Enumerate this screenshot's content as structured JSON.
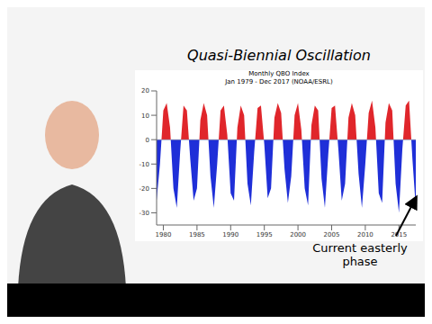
{
  "header": "Quasi-Biennial Oscillation",
  "chart_data": {
    "type": "area",
    "title": "Monthly QBO Index",
    "subtitle": "Jan 1979 - Dec 2017 (NOAA/ESRL)",
    "annotation": "Current easterly phase",
    "colors": [
      "#e0262b",
      "#1f2fd8"
    ],
    "x": [
      1979.0,
      1979.5,
      1980.0,
      1980.5,
      1981.0,
      1981.5,
      1982.0,
      1982.5,
      1983.0,
      1983.5,
      1984.0,
      1984.5,
      1985.0,
      1985.5,
      1986.0,
      1986.5,
      1987.0,
      1987.5,
      1988.0,
      1988.5,
      1989.0,
      1989.5,
      1990.0,
      1990.5,
      1991.0,
      1991.5,
      1992.0,
      1992.5,
      1993.0,
      1993.5,
      1994.0,
      1994.5,
      1995.0,
      1995.5,
      1996.0,
      1996.5,
      1997.0,
      1997.5,
      1998.0,
      1998.5,
      1999.0,
      1999.5,
      2000.0,
      2000.5,
      2001.0,
      2001.5,
      2002.0,
      2002.5,
      2003.0,
      2003.5,
      2004.0,
      2004.5,
      2005.0,
      2005.5,
      2006.0,
      2006.5,
      2007.0,
      2007.5,
      2008.0,
      2008.5,
      2009.0,
      2009.5,
      2010.0,
      2010.5,
      2011.0,
      2011.5,
      2012.0,
      2012.5,
      2013.0,
      2013.5,
      2014.0,
      2014.5,
      2015.0,
      2015.5,
      2016.0,
      2016.5,
      2017.0,
      2017.5
    ],
    "values": [
      -25,
      -10,
      12,
      15,
      5,
      -20,
      -28,
      -5,
      14,
      12,
      -8,
      -25,
      -20,
      8,
      15,
      10,
      -15,
      -28,
      -10,
      12,
      14,
      2,
      -22,
      -25,
      5,
      14,
      10,
      -18,
      -27,
      -5,
      13,
      14,
      -2,
      -24,
      -20,
      9,
      15,
      11,
      -12,
      -26,
      -15,
      10,
      15,
      4,
      -20,
      -27,
      6,
      14,
      12,
      -16,
      -28,
      -6,
      13,
      14,
      -4,
      -25,
      -18,
      9,
      15,
      10,
      -14,
      -28,
      -10,
      11,
      16,
      5,
      -22,
      -26,
      7,
      15,
      12,
      -18,
      -30,
      -4,
      14,
      16,
      -8,
      -28
    ],
    "xlim": [
      1979,
      2017.5
    ],
    "xticks": [
      1980,
      1985,
      1990,
      1995,
      2000,
      2005,
      2010,
      2015
    ],
    "ylim": [
      -35,
      20
    ],
    "yticks": [
      -30,
      -20,
      -10,
      0,
      10,
      20
    ]
  }
}
